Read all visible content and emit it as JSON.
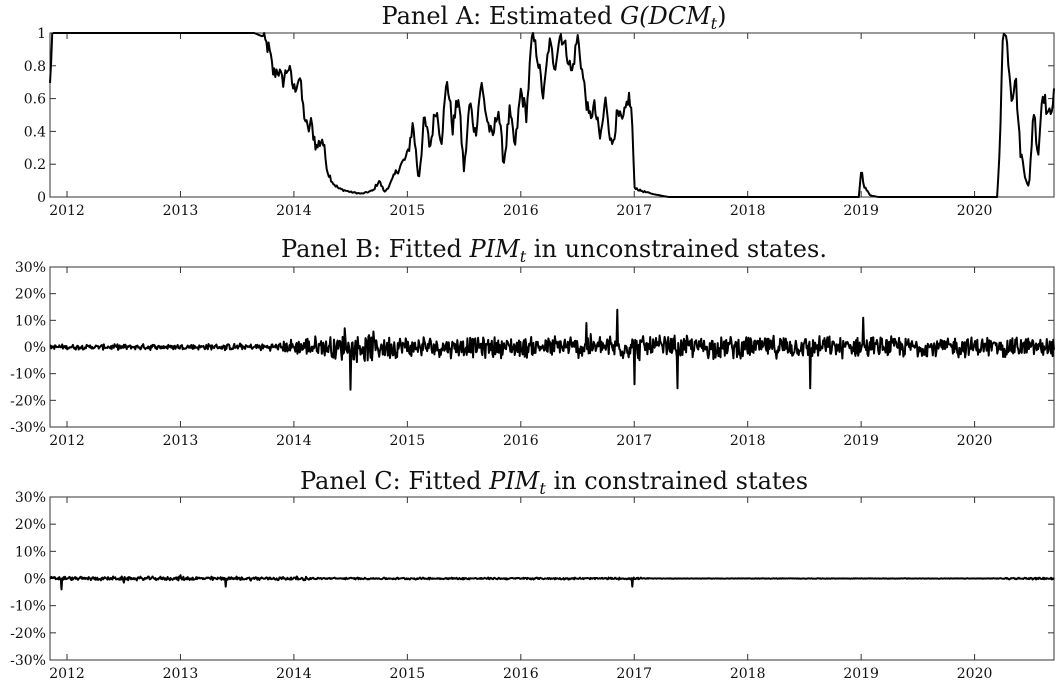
{
  "chart_data": [
    {
      "type": "line",
      "title": "Panel A: Estimated G(DCM_t)",
      "title_parts": {
        "text": "Panel A: Estimated ",
        "math": "G(DCM",
        "sub": "t",
        "close": ")"
      },
      "xlabel": "",
      "ylabel": "",
      "xlim": [
        2011.85,
        2020.7
      ],
      "ylim": [
        0,
        1
      ],
      "yticks": [
        0,
        0.2,
        0.4,
        0.6,
        0.8,
        1
      ],
      "ytick_labels": [
        "0",
        "0.2",
        "0.4",
        "0.6",
        "0.8",
        "1"
      ],
      "xticks": [
        2012,
        2013,
        2014,
        2015,
        2016,
        2017,
        2018,
        2019,
        2020
      ],
      "xtick_labels": [
        "2012",
        "2013",
        "2014",
        "2015",
        "2016",
        "2017",
        "2018",
        "2019",
        "2020"
      ],
      "grid": false,
      "series": [
        {
          "color": "#000000",
          "x": [
            2011.85,
            2011.87,
            2012.0,
            2012.5,
            2013.0,
            2013.5,
            2013.65,
            2013.72,
            2013.78,
            2013.82,
            2013.86,
            2013.9,
            2013.95,
            2014.0,
            2014.05,
            2014.08,
            2014.12,
            2014.15,
            2014.2,
            2014.25,
            2014.3,
            2014.35,
            2014.4,
            2014.5,
            2014.6,
            2014.7,
            2014.75,
            2014.8,
            2014.85,
            2014.9,
            2014.95,
            2015.0,
            2015.05,
            2015.1,
            2015.15,
            2015.2,
            2015.25,
            2015.3,
            2015.35,
            2015.4,
            2015.45,
            2015.5,
            2015.55,
            2015.6,
            2015.65,
            2015.7,
            2015.75,
            2015.8,
            2015.85,
            2015.9,
            2015.95,
            2016.0,
            2016.05,
            2016.1,
            2016.15,
            2016.2,
            2016.25,
            2016.3,
            2016.35,
            2016.4,
            2016.45,
            2016.5,
            2016.55,
            2016.6,
            2016.65,
            2016.7,
            2016.75,
            2016.8,
            2016.85,
            2016.9,
            2016.95,
            2016.98,
            2017.0,
            2017.05,
            2017.15,
            2017.3,
            2017.5,
            2018.0,
            2018.5,
            2018.98,
            2019.0,
            2019.03,
            2019.08,
            2019.15,
            2019.5,
            2020.0,
            2020.2,
            2020.22,
            2020.25,
            2020.28,
            2020.3,
            2020.33,
            2020.36,
            2020.4,
            2020.44,
            2020.48,
            2020.52,
            2020.56,
            2020.6,
            2020.65,
            2020.7
          ],
          "y": [
            0.68,
            1.0,
            1.0,
            1.0,
            1.0,
            1.0,
            1.0,
            0.98,
            0.9,
            0.75,
            0.78,
            0.7,
            0.8,
            0.65,
            0.74,
            0.55,
            0.4,
            0.45,
            0.3,
            0.36,
            0.15,
            0.08,
            0.05,
            0.03,
            0.02,
            0.04,
            0.1,
            0.03,
            0.08,
            0.15,
            0.2,
            0.25,
            0.45,
            0.1,
            0.48,
            0.3,
            0.55,
            0.35,
            0.72,
            0.42,
            0.62,
            0.15,
            0.58,
            0.38,
            0.7,
            0.48,
            0.35,
            0.55,
            0.2,
            0.52,
            0.3,
            0.65,
            0.5,
            1.0,
            0.85,
            0.6,
            0.95,
            0.8,
            1.0,
            0.9,
            0.75,
            0.98,
            0.72,
            0.48,
            0.55,
            0.35,
            0.6,
            0.3,
            0.5,
            0.45,
            0.62,
            0.5,
            0.06,
            0.04,
            0.02,
            0.0,
            0.0,
            0.0,
            0.0,
            0.0,
            0.17,
            0.06,
            0.01,
            0.0,
            0.0,
            0.0,
            0.0,
            0.3,
            1.0,
            0.98,
            0.82,
            0.6,
            0.75,
            0.3,
            0.15,
            0.05,
            0.55,
            0.25,
            0.66,
            0.48,
            0.62
          ]
        }
      ]
    },
    {
      "type": "line",
      "title": "Panel B: Fitted PIM_t in unconstrained states.",
      "title_parts": {
        "text": "Panel B: Fitted ",
        "math": "PIM",
        "sub": "t",
        "close": " in unconstrained states."
      },
      "xlabel": "",
      "ylabel": "",
      "xlim": [
        2011.85,
        2020.7
      ],
      "ylim": [
        -0.3,
        0.3
      ],
      "yticks": [
        -0.3,
        -0.2,
        -0.1,
        0,
        0.1,
        0.2,
        0.3
      ],
      "ytick_labels": [
        "-30%",
        "-20%",
        "-10%",
        "0%",
        "10%",
        "20%",
        "30%"
      ],
      "xticks": [
        2012,
        2013,
        2014,
        2015,
        2016,
        2017,
        2018,
        2019,
        2020
      ],
      "xtick_labels": [
        "2012",
        "2013",
        "2014",
        "2015",
        "2016",
        "2017",
        "2018",
        "2019",
        "2020"
      ],
      "grid": false,
      "volatility_profile": {
        "x": [
          2011.85,
          2013.8,
          2014.0,
          2014.3,
          2014.6,
          2015.0,
          2016.0,
          2016.8,
          2017.5,
          2019.0,
          2020.7
        ],
        "amplitude": [
          0.01,
          0.015,
          0.035,
          0.05,
          0.065,
          0.045,
          0.045,
          0.055,
          0.05,
          0.045,
          0.045
        ]
      },
      "spikes": [
        {
          "x": 2014.5,
          "y": -0.16
        },
        {
          "x": 2014.45,
          "y": 0.07
        },
        {
          "x": 2016.85,
          "y": 0.14
        },
        {
          "x": 2017.38,
          "y": -0.155
        },
        {
          "x": 2016.58,
          "y": 0.09
        },
        {
          "x": 2019.02,
          "y": 0.11
        },
        {
          "x": 2018.55,
          "y": -0.155
        },
        {
          "x": 2017.0,
          "y": -0.14
        }
      ],
      "series": [
        {
          "color": "#000000"
        }
      ]
    },
    {
      "type": "line",
      "title": "Panel C: Fitted PIM_t in constrained states",
      "title_parts": {
        "text": "Panel C: Fitted ",
        "math": "PIM",
        "sub": "t",
        "close": " in constrained states"
      },
      "xlabel": "",
      "ylabel": "",
      "xlim": [
        2011.85,
        2020.7
      ],
      "ylim": [
        -0.3,
        0.3
      ],
      "yticks": [
        -0.3,
        -0.2,
        -0.1,
        0,
        0.1,
        0.2,
        0.3
      ],
      "ytick_labels": [
        "-30%",
        "-20%",
        "-10%",
        "0%",
        "10%",
        "20%",
        "30%"
      ],
      "xticks": [
        2012,
        2013,
        2014,
        2015,
        2016,
        2017,
        2018,
        2019,
        2020
      ],
      "xtick_labels": [
        "2012",
        "2013",
        "2014",
        "2015",
        "2016",
        "2017",
        "2018",
        "2019",
        "2020"
      ],
      "grid": false,
      "volatility_profile": {
        "x": [
          2011.85,
          2014.1,
          2014.2,
          2017.05,
          2017.15,
          2020.2,
          2020.3,
          2020.7
        ],
        "amplitude": [
          0.008,
          0.008,
          0.004,
          0.004,
          0.001,
          0.001,
          0.004,
          0.004
        ]
      },
      "spikes": [
        {
          "x": 2011.95,
          "y": -0.04
        },
        {
          "x": 2013.4,
          "y": -0.03
        },
        {
          "x": 2013.0,
          "y": 0.012
        },
        {
          "x": 2016.98,
          "y": -0.03
        },
        {
          "x": 2012.5,
          "y": -0.015
        }
      ],
      "series": [
        {
          "color": "#000000"
        }
      ]
    }
  ]
}
